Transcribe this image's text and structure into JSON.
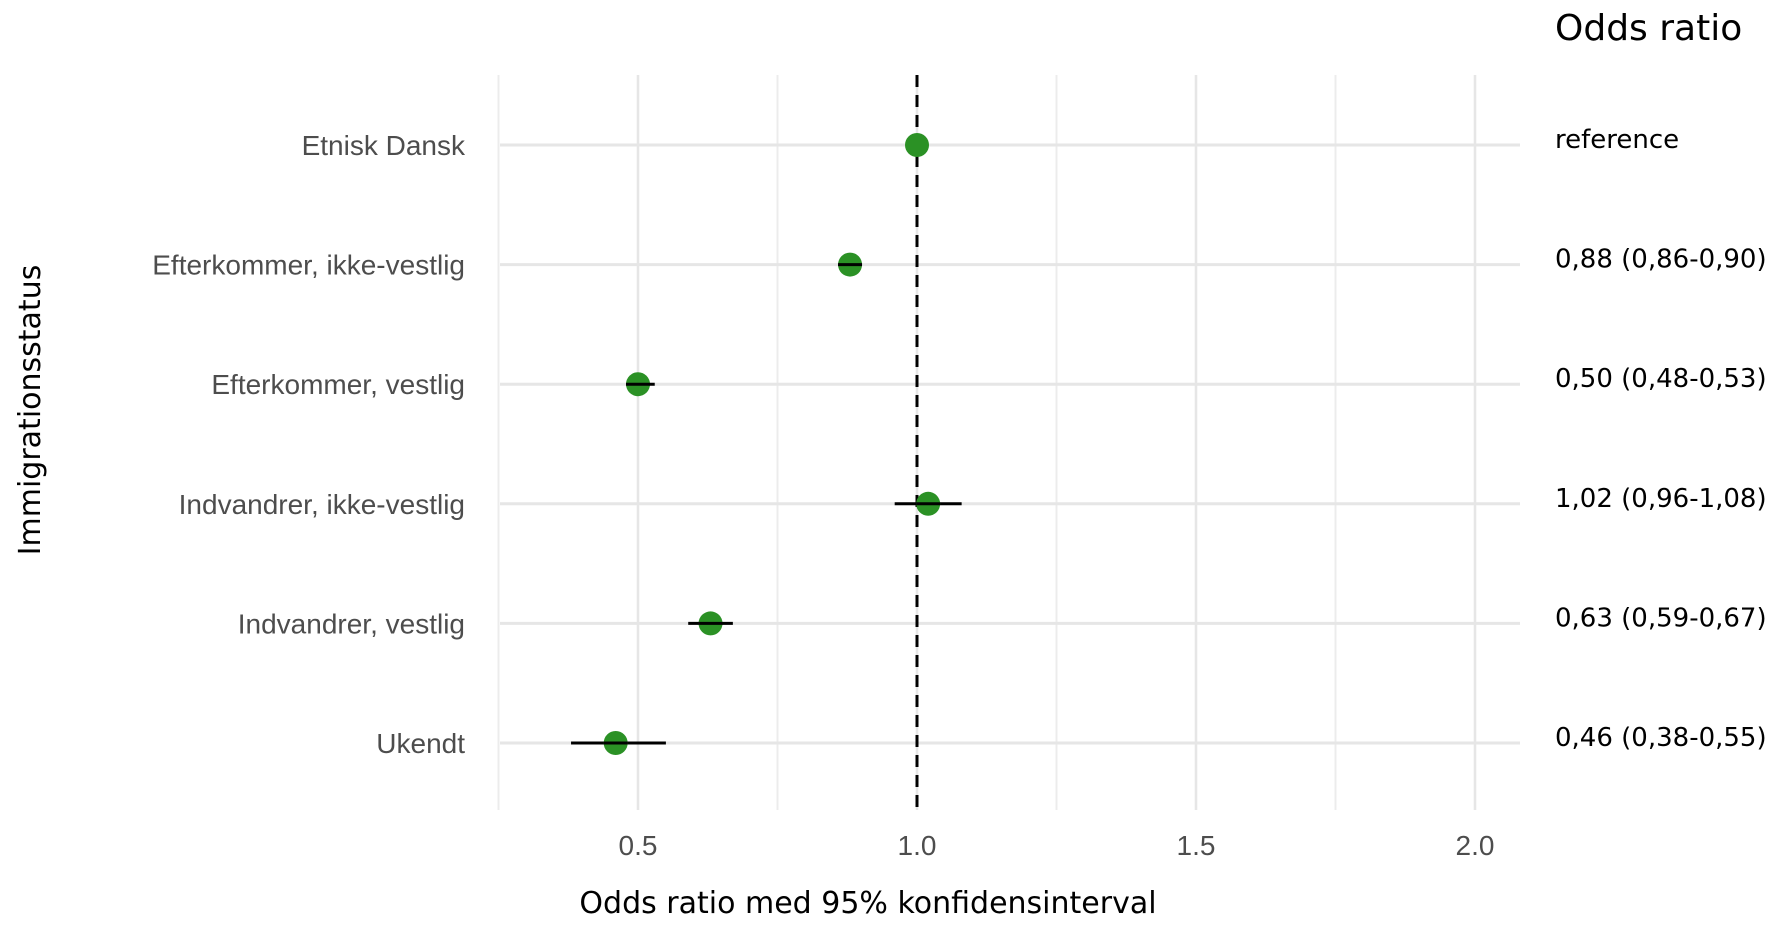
{
  "chart_data": {
    "type": "scatter",
    "subtype": "forest-plot",
    "title": "",
    "xlabel": "Odds ratio med 95% konfidensinterval",
    "ylabel": "Immigrationsstatus",
    "xlim": [
      0.25,
      2.17
    ],
    "x_ticks": [
      0.5,
      1.0,
      1.5,
      2.0
    ],
    "x_tick_labels": [
      "0.5",
      "1.0",
      "1.5",
      "2.0"
    ],
    "reference_line": 1.0,
    "grid": true,
    "point_color": "#2b9125",
    "annotation_header": "Odds ratio",
    "categories": [
      "Etnisk Dansk",
      "Efterkommer, ikke-vestlig",
      "Efterkommer, vestlig",
      "Indvandrer, ikke-vestlig",
      "Indvandrer, vestlig",
      "Ukendt"
    ],
    "estimates": [
      1.0,
      0.88,
      0.5,
      1.02,
      0.63,
      0.46
    ],
    "ci_lower": [
      1.0,
      0.86,
      0.48,
      0.96,
      0.59,
      0.38
    ],
    "ci_upper": [
      1.0,
      0.9,
      0.53,
      1.08,
      0.67,
      0.55
    ],
    "annotations": [
      "reference",
      "0,88 (0,86-0,90)",
      "0,50 (0,48-0,53)",
      "1,02 (0,96-1,08)",
      "0,63 (0,59-0,67)",
      "0,46 (0,38-0,55)"
    ]
  }
}
